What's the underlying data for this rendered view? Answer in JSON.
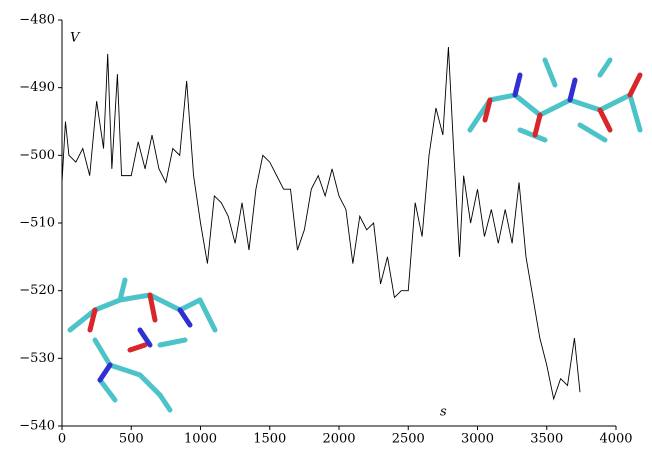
{
  "chart_data": {
    "type": "line",
    "x_label": "s",
    "y_label": "V",
    "x": [
      0,
      25,
      50,
      100,
      150,
      200,
      250,
      300,
      330,
      360,
      400,
      430,
      500,
      550,
      600,
      650,
      700,
      750,
      800,
      850,
      900,
      950,
      1000,
      1050,
      1100,
      1150,
      1200,
      1250,
      1300,
      1350,
      1400,
      1450,
      1500,
      1550,
      1600,
      1650,
      1700,
      1750,
      1800,
      1850,
      1900,
      1950,
      2000,
      2050,
      2100,
      2150,
      2200,
      2250,
      2300,
      2350,
      2400,
      2450,
      2500,
      2550,
      2600,
      2650,
      2700,
      2750,
      2790,
      2830,
      2870,
      2900,
      2950,
      3000,
      3050,
      3100,
      3150,
      3200,
      3250,
      3300,
      3350,
      3400,
      3450,
      3500,
      3550,
      3600,
      3650,
      3700,
      3740
    ],
    "values": [
      -504,
      -495,
      -500,
      -501,
      -499,
      -503,
      -492,
      -499,
      -485,
      -502,
      -488,
      -503,
      -503,
      -498,
      -502,
      -497,
      -502,
      -504,
      -499,
      -500,
      -489,
      -503,
      -510,
      -516,
      -506,
      -507,
      -509,
      -513,
      -507,
      -514,
      -505,
      -500,
      -501,
      -503,
      -505,
      -505,
      -514,
      -511,
      -505,
      -503,
      -506,
      -502,
      -506,
      -508,
      -516,
      -509,
      -511,
      -510,
      -519,
      -515,
      -521,
      -520,
      -520,
      -507,
      -512,
      -500,
      -493,
      -497,
      -484,
      -500,
      -515,
      -503,
      -510,
      -505,
      -512,
      -508,
      -513,
      -508,
      -513,
      -504,
      -515,
      -521,
      -527,
      -531,
      -536,
      -533,
      -534,
      -527,
      -535
    ],
    "color": "#000000",
    "xlim": [
      0,
      4000
    ],
    "xticks": [
      0,
      500,
      1000,
      1500,
      2000,
      2500,
      3000,
      3500,
      4000
    ],
    "ylim": [
      -540,
      -480
    ],
    "yticks": [
      {
        "value": -540,
        "label": "−540"
      },
      {
        "value": -530,
        "label": "−530"
      },
      {
        "value": -520,
        "label": "−520"
      },
      {
        "value": -510,
        "label": "−510"
      },
      {
        "value": -500,
        "label": "−500"
      },
      {
        "value": -490,
        "label": "−490"
      },
      {
        "value": -480,
        "label": "−480"
      }
    ]
  }
}
